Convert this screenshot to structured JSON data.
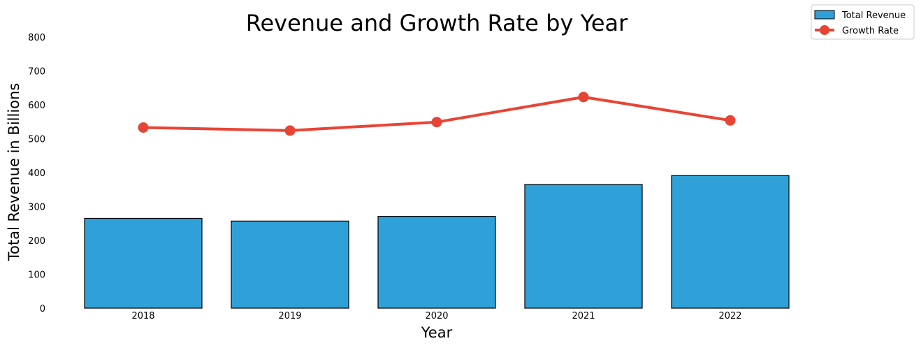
{
  "chart_data": {
    "type": "bar",
    "title": "Revenue and Growth Rate by Year",
    "xlabel": "Year",
    "ylabel": "Total Revenue in Billions",
    "categories": [
      "2018",
      "2019",
      "2020",
      "2021",
      "2022"
    ],
    "ylim": [
      0,
      800
    ],
    "yticks": [
      0,
      100,
      200,
      300,
      400,
      500,
      600,
      700,
      800
    ],
    "grid": false,
    "legend_position": "top-right",
    "series": [
      {
        "name": "Total Revenue",
        "type": "bar",
        "values": [
          265,
          257,
          271,
          365,
          391
        ],
        "color": "#2fa1d8",
        "edge_color": "#000000"
      },
      {
        "name": "Growth Rate",
        "type": "line",
        "values": [
          533,
          524,
          549,
          623,
          554
        ],
        "color": "#e84435"
      }
    ]
  }
}
